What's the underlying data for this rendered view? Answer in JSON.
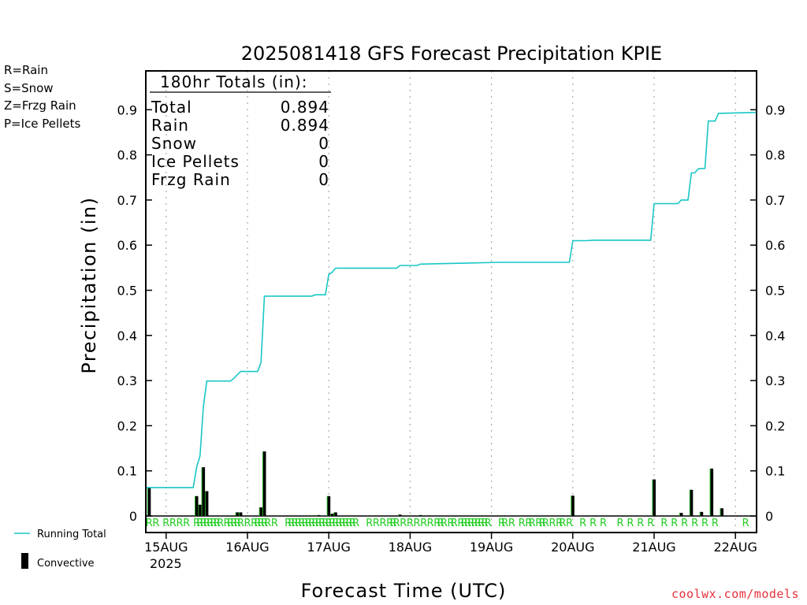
{
  "chart_data": {
    "type": "bar+line",
    "title": "2025081418 GFS Forecast Precipitation KPIE",
    "ylabel": "Precipitation (in)",
    "xlabel": "Forecast Time (UTC)",
    "ylim": [
      0,
      0.98
    ],
    "yticks": [
      "0",
      "0.1",
      "0.2",
      "0.3",
      "0.4",
      "0.5",
      "0.6",
      "0.7",
      "0.8",
      "0.9"
    ],
    "ytick_values": [
      0,
      0.1,
      0.2,
      0.3,
      0.4,
      0.5,
      0.6,
      0.7,
      0.8,
      0.9
    ],
    "x_unit": "hours since 2025-08-14 18 UTC",
    "xlim": [
      0,
      180
    ],
    "xticks": [
      {
        "label": "15AUG",
        "hour": 6
      },
      {
        "label": "16AUG",
        "hour": 30
      },
      {
        "label": "17AUG",
        "hour": 54
      },
      {
        "label": "18AUG",
        "hour": 78
      },
      {
        "label": "19AUG",
        "hour": 102
      },
      {
        "label": "20AUG",
        "hour": 126
      },
      {
        "label": "21AUG",
        "hour": 150
      },
      {
        "label": "22AUG",
        "hour": 174
      }
    ],
    "year_label": "2025",
    "grid": "vertical dotted at day boundaries",
    "totals_box": {
      "heading": "180hr Totals (in):",
      "rows": [
        {
          "label": "Total",
          "value": "0.894"
        },
        {
          "label": "Rain",
          "value": "0.894"
        },
        {
          "label": "Snow",
          "value": "0"
        },
        {
          "label": "Ice Pellets",
          "value": "0"
        },
        {
          "label": "Frzg Rain",
          "value": "0"
        }
      ]
    },
    "precip_type_legend": [
      {
        "text": "R=Rain",
        "color": "#22cc22"
      },
      {
        "text": "S=Snow",
        "color": "#3a3ae0"
      },
      {
        "text": "Z=Frzg Rain",
        "color": "#f08a3a"
      },
      {
        "text": "P=Ice Pellets",
        "color": "#e0208a"
      }
    ],
    "series_legend": {
      "line": "Running Total",
      "bar": "Convective"
    },
    "colors": {
      "running_total": "#19c6c6",
      "convective_bar": "#000000",
      "bar_highlight": "#22aa22",
      "rain_marker": "#22cc22",
      "grid": "#aaaaaa"
    },
    "convective_bars": [
      {
        "hour": 1,
        "value": 0.063
      },
      {
        "hour": 15,
        "value": 0.044
      },
      {
        "hour": 16,
        "value": 0.025
      },
      {
        "hour": 17,
        "value": 0.108
      },
      {
        "hour": 18,
        "value": 0.055
      },
      {
        "hour": 27,
        "value": 0.008
      },
      {
        "hour": 28,
        "value": 0.008
      },
      {
        "hour": 34,
        "value": 0.019
      },
      {
        "hour": 35,
        "value": 0.143
      },
      {
        "hour": 51,
        "value": 0.002
      },
      {
        "hour": 54,
        "value": 0.044
      },
      {
        "hour": 55,
        "value": 0.005
      },
      {
        "hour": 56,
        "value": 0.008
      },
      {
        "hour": 75,
        "value": 0.003
      },
      {
        "hour": 81,
        "value": 0.002
      },
      {
        "hour": 126,
        "value": 0.045
      },
      {
        "hour": 150,
        "value": 0.081
      },
      {
        "hour": 158,
        "value": 0.007
      },
      {
        "hour": 161,
        "value": 0.058
      },
      {
        "hour": 164,
        "value": 0.009
      },
      {
        "hour": 167,
        "value": 0.105
      },
      {
        "hour": 170,
        "value": 0.017
      }
    ],
    "running_total": {
      "name": "Running Total",
      "points": [
        [
          0,
          0.063
        ],
        [
          14,
          0.063
        ],
        [
          15,
          0.108
        ],
        [
          16,
          0.133
        ],
        [
          17,
          0.243
        ],
        [
          18,
          0.299
        ],
        [
          25,
          0.299
        ],
        [
          26,
          0.305
        ],
        [
          27,
          0.313
        ],
        [
          28,
          0.32
        ],
        [
          33,
          0.32
        ],
        [
          34,
          0.34
        ],
        [
          35,
          0.487
        ],
        [
          49,
          0.487
        ],
        [
          50,
          0.49
        ],
        [
          53,
          0.49
        ],
        [
          54,
          0.535
        ],
        [
          55,
          0.54
        ],
        [
          56,
          0.549
        ],
        [
          74,
          0.549
        ],
        [
          75,
          0.555
        ],
        [
          80,
          0.555
        ],
        [
          81,
          0.558
        ],
        [
          87,
          0.559
        ],
        [
          94,
          0.56
        ],
        [
          104,
          0.562
        ],
        [
          125,
          0.562
        ],
        [
          126,
          0.61
        ],
        [
          130,
          0.61
        ],
        [
          132,
          0.611
        ],
        [
          149,
          0.611
        ],
        [
          150,
          0.692
        ],
        [
          157,
          0.692
        ],
        [
          158,
          0.7
        ],
        [
          160,
          0.7
        ],
        [
          161,
          0.76
        ],
        [
          162,
          0.76
        ],
        [
          163,
          0.769
        ],
        [
          165,
          0.77
        ],
        [
          166,
          0.875
        ],
        [
          168,
          0.875
        ],
        [
          169,
          0.892
        ],
        [
          180,
          0.894
        ]
      ]
    },
    "rain_markers": {
      "letter": "R",
      "hours": [
        1,
        3,
        6,
        8,
        10,
        12,
        15,
        16,
        17,
        18,
        19,
        20,
        21,
        22,
        24,
        25,
        26,
        27,
        28,
        30,
        32,
        33,
        34,
        35,
        36,
        38,
        42,
        43,
        44,
        45,
        46,
        47,
        48,
        49,
        50,
        51,
        52,
        53,
        54,
        55,
        56,
        57,
        58,
        59,
        60,
        61,
        62,
        66,
        68,
        70,
        72,
        73,
        74,
        76,
        78,
        80,
        82,
        84,
        86,
        87,
        88,
        90,
        91,
        93,
        94,
        95,
        96,
        97,
        98,
        99,
        100,
        101,
        105,
        106,
        108,
        111,
        113,
        114,
        116,
        117,
        118,
        120,
        122,
        123,
        125,
        129,
        132,
        135,
        140,
        143,
        146,
        149,
        153,
        156,
        159,
        162,
        165,
        168,
        177,
        183
      ]
    }
  },
  "credit": "coolwx.com/models"
}
